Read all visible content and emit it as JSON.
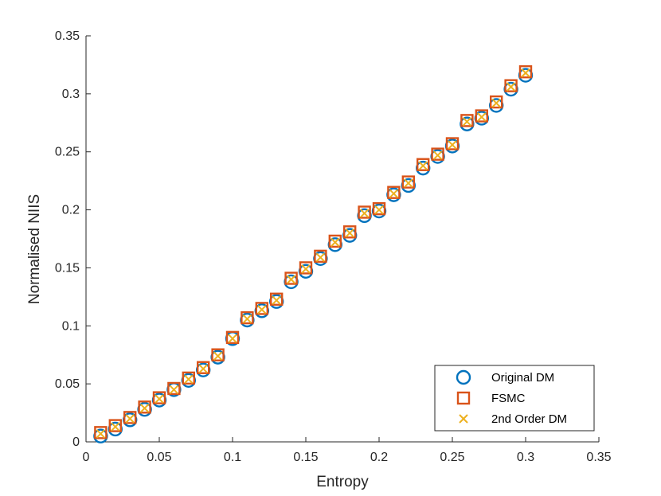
{
  "chart_data": {
    "type": "scatter",
    "title": "",
    "xlabel": "Entropy",
    "ylabel": "Normalised NIIS",
    "xlim": [
      0,
      0.35
    ],
    "ylim": [
      0,
      0.35
    ],
    "xticks": [
      "0",
      "0.05",
      "0.1",
      "0.15",
      "0.2",
      "0.25",
      "0.3",
      "0.35"
    ],
    "yticks": [
      "0",
      "0.05",
      "0.1",
      "0.15",
      "0.2",
      "0.25",
      "0.3",
      "0.35"
    ],
    "grid": false,
    "legend_position": "bottom-right",
    "x": [
      0.01,
      0.02,
      0.03,
      0.04,
      0.05,
      0.06,
      0.07,
      0.08,
      0.09,
      0.1,
      0.11,
      0.12,
      0.13,
      0.14,
      0.15,
      0.16,
      0.17,
      0.18,
      0.19,
      0.2,
      0.21,
      0.22,
      0.23,
      0.24,
      0.25,
      0.26,
      0.27,
      0.28,
      0.29,
      0.3
    ],
    "series": [
      {
        "name": "Original DM",
        "marker": "circle",
        "color": "#0072BD",
        "values": [
          0.005,
          0.011,
          0.019,
          0.028,
          0.036,
          0.045,
          0.053,
          0.062,
          0.073,
          0.089,
          0.105,
          0.113,
          0.121,
          0.138,
          0.147,
          0.158,
          0.17,
          0.178,
          0.195,
          0.199,
          0.213,
          0.221,
          0.236,
          0.246,
          0.255,
          0.274,
          0.279,
          0.29,
          0.304,
          0.316
        ]
      },
      {
        "name": "FSMC",
        "marker": "square",
        "color": "#D95319",
        "values": [
          0.008,
          0.014,
          0.021,
          0.03,
          0.038,
          0.046,
          0.055,
          0.064,
          0.075,
          0.09,
          0.107,
          0.115,
          0.123,
          0.141,
          0.15,
          0.16,
          0.173,
          0.181,
          0.198,
          0.201,
          0.215,
          0.224,
          0.239,
          0.248,
          0.257,
          0.277,
          0.281,
          0.293,
          0.307,
          0.319
        ]
      },
      {
        "name": "2nd Order DM",
        "marker": "x",
        "color": "#EDB120",
        "values": [
          0.007,
          0.013,
          0.02,
          0.029,
          0.037,
          0.045,
          0.054,
          0.063,
          0.074,
          0.089,
          0.106,
          0.114,
          0.122,
          0.14,
          0.149,
          0.159,
          0.172,
          0.18,
          0.197,
          0.2,
          0.214,
          0.223,
          0.238,
          0.247,
          0.256,
          0.276,
          0.28,
          0.292,
          0.306,
          0.318
        ]
      }
    ]
  }
}
